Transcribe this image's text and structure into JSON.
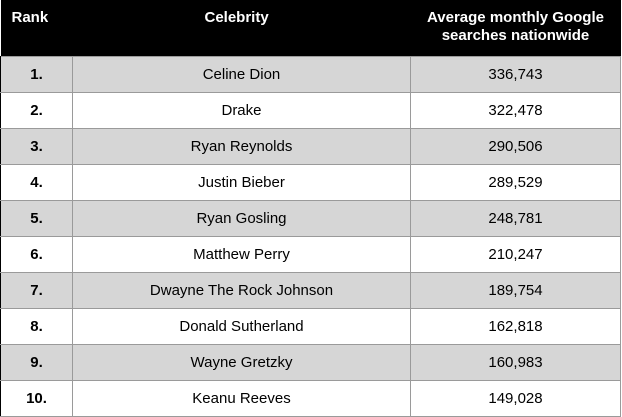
{
  "table": {
    "headers": {
      "rank": "Rank",
      "celebrity": "Celebrity",
      "searches": "Average monthly Google searches nationwide"
    },
    "rows": [
      {
        "rank": "1.",
        "celebrity": "Celine Dion",
        "searches": "336,743"
      },
      {
        "rank": "2.",
        "celebrity": "Drake",
        "searches": "322,478"
      },
      {
        "rank": "3.",
        "celebrity": "Ryan Reynolds",
        "searches": "290,506"
      },
      {
        "rank": "4.",
        "celebrity": "Justin Bieber",
        "searches": "289,529"
      },
      {
        "rank": "5.",
        "celebrity": "Ryan Gosling",
        "searches": "248,781"
      },
      {
        "rank": "6.",
        "celebrity": "Matthew Perry",
        "searches": "210,247"
      },
      {
        "rank": "7.",
        "celebrity": "Dwayne The Rock Johnson",
        "searches": "189,754"
      },
      {
        "rank": "8.",
        "celebrity": "Donald Sutherland",
        "searches": "162,818"
      },
      {
        "rank": "9.",
        "celebrity": "Wayne Gretzky",
        "searches": "160,983"
      },
      {
        "rank": "10.",
        "celebrity": "Keanu Reeves",
        "searches": "149,028"
      }
    ]
  },
  "colors": {
    "header_bg": "#000000",
    "header_text": "#ffffff",
    "shaded_row": "#d6d6d6",
    "plain_row": "#ffffff",
    "grid_line": "#9a9a9a"
  }
}
